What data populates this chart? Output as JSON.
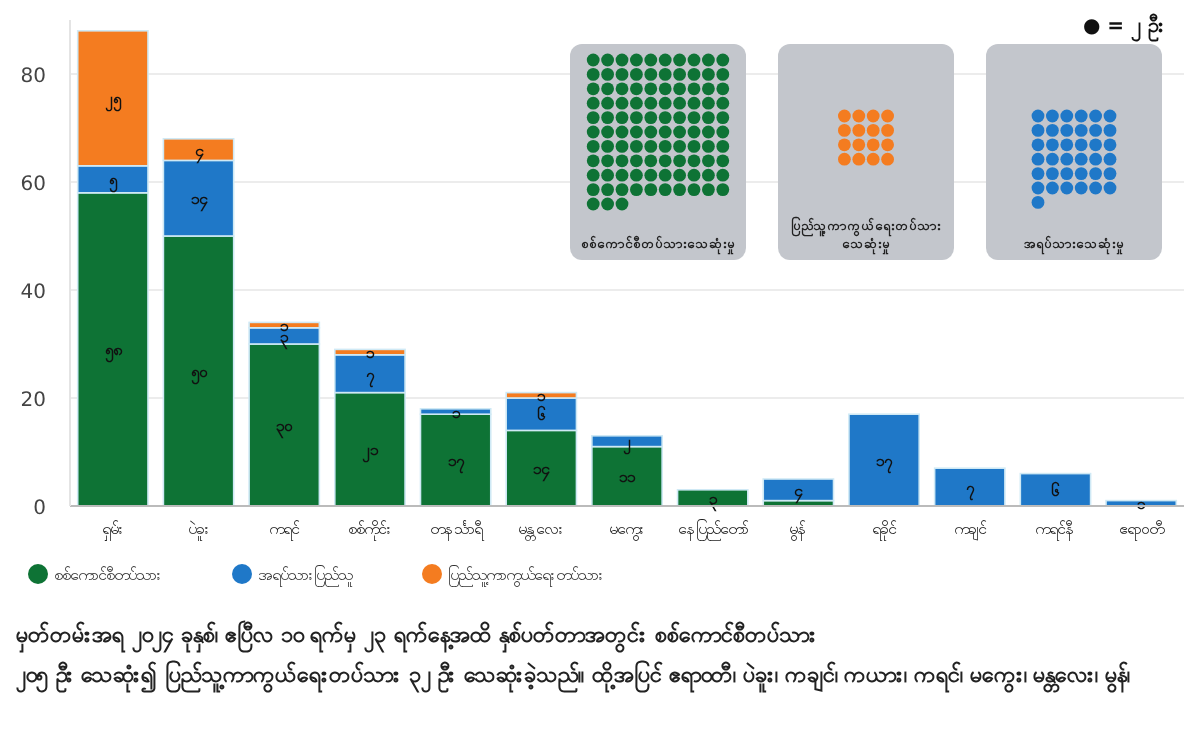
{
  "chart_data": {
    "type": "bar",
    "stacked": true,
    "categories": [
      "ရှမ်း",
      "ပဲခူး",
      "ကရင်",
      "စစ်ကိုင်း",
      "တနင်္သာရီ",
      "မန္တလေး",
      "မကွေး",
      "နေပြည်တော်",
      "မွန်",
      "ရခိုင်",
      "ကချင်",
      "ကရင်နီ",
      "ဧရာဝတီ"
    ],
    "series": [
      {
        "name": "စစ်ကောင်စီတပ်သား",
        "color": "#0e7335",
        "values": [
          58,
          50,
          30,
          21,
          17,
          14,
          11,
          3,
          1,
          null,
          null,
          null,
          null
        ],
        "value_labels": [
          "၅၈",
          "၅၀",
          "၃၀",
          "၂၁",
          "၁၇",
          "၁၄",
          "၁၁",
          "၃",
          null,
          null,
          null,
          null,
          null
        ]
      },
      {
        "name": "အရပ်သားပြည်သူ",
        "color": "#1f78c8",
        "values": [
          5,
          14,
          3,
          7,
          1,
          6,
          2,
          null,
          4,
          17,
          7,
          6,
          1
        ],
        "value_labels": [
          "၅",
          "၁၄",
          "၃",
          "၇",
          "၁",
          "၆",
          "၂",
          null,
          "၄",
          "၁၇",
          "၇",
          "၆",
          "၁"
        ]
      },
      {
        "name": "ပြည်သူ့ကာကွယ်ရေးတပ်သား",
        "color": "#f47c20",
        "values": [
          25,
          4,
          1,
          1,
          null,
          1,
          null,
          null,
          null,
          null,
          null,
          null,
          null
        ],
        "value_labels": [
          "၂၅",
          "၄",
          "၁",
          "၁",
          null,
          "၁",
          null,
          null,
          null,
          null,
          null,
          null,
          null
        ]
      }
    ],
    "ylim": [
      0,
      90
    ],
    "yticks": [
      0,
      20,
      40,
      60,
      80
    ],
    "grid": "y",
    "legend": "bottom",
    "annotations": [
      "● = ၂ ဦး",
      "စစ်ကောင်စီတပ်သားသေဆုံးမှု",
      "ပြည်သူ့ကာကွယ်ရေးတပ်သား သေဆုံးမှု",
      "အရပ်သားသေဆုံးမှု",
      "မှတ်တမ်းအရ ၂၀၂၄ ခုနှစ်၊ ဧပြီလ ၁၀ ရက်မှ ၂၃ ရက်နေ့အထိ နှစ်ပတ်တာအတွင်း စစ်ကောင်စီတပ်သား",
      "၂၀၅ ဦး သေဆုံး၍ ပြည်သူ့ကာကွယ်ရေးတပ်သား ၃၂ ဦး သေဆုံးခဲ့သည်။ ထို့အပြင် ဧရာဝတီ၊ ပဲခူး၊ ကချင်၊ ကယား၊ ကရင်၊ မကွေး၊ မန္တလေး၊ မွန်၊"
    ]
  }
}
